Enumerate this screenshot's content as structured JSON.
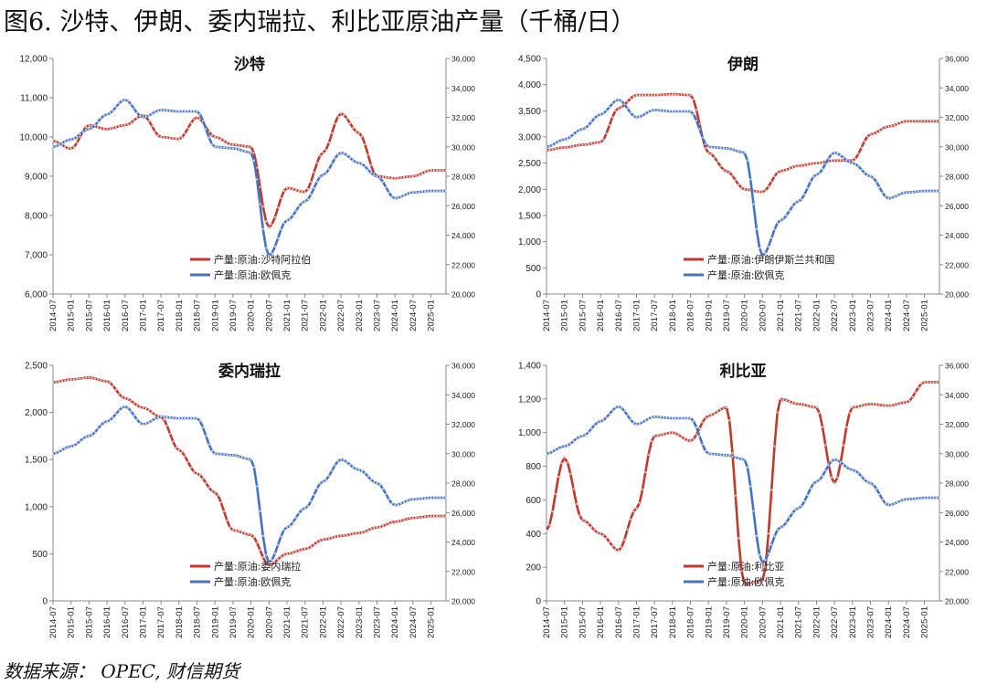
{
  "figure_title": "图6. 沙特、伊朗、委内瑞拉、利比亚原油产量（千桶/日）",
  "source_text": "数据来源：  OPEC,  财信期货",
  "colors": {
    "red": "#c0392b",
    "blue": "#4472c4"
  },
  "chart_data": [
    {
      "type": "line",
      "title": "沙特",
      "left_ylim": [
        6000,
        12000
      ],
      "left_ticks": [
        6000,
        7000,
        8000,
        9000,
        10000,
        11000,
        12000
      ],
      "left_tick_labels": [
        "6,000",
        "7,000",
        "8,000",
        "9,000",
        "10,000",
        "11,000",
        "12,000"
      ],
      "right_ylim": [
        20000,
        36000
      ],
      "right_ticks": [
        20000,
        22000,
        24000,
        26000,
        28000,
        30000,
        32000,
        34000,
        36000
      ],
      "right_tick_labels": [
        "20,000",
        "22,000",
        "24,000",
        "26,000",
        "28,000",
        "30,000",
        "32,000",
        "34,000",
        "36,000"
      ],
      "x": [
        "2014-07",
        "2015-01",
        "2015-07",
        "2016-01",
        "2016-07",
        "2017-01",
        "2017-07",
        "2018-01",
        "2018-07",
        "2019-01",
        "2019-07",
        "2020-01",
        "2020-07",
        "2021-01",
        "2021-07",
        "2022-01",
        "2022-07",
        "2023-01",
        "2023-07",
        "2024-01",
        "2024-07",
        "2025-01"
      ],
      "legend_position": "bottom-center",
      "series": [
        {
          "name": "产量:原油:沙特阿拉伯",
          "axis": "left",
          "color": "#c0392b",
          "values": [
            9900,
            9700,
            10300,
            10200,
            10300,
            10550,
            10000,
            9950,
            10500,
            10000,
            9800,
            9750,
            7700,
            8700,
            8600,
            9600,
            10600,
            10100,
            9000,
            8950,
            9000,
            9150
          ]
        },
        {
          "name": "产量:原油:欧佩克",
          "axis": "right",
          "color": "#4472c4",
          "values": [
            30000,
            30500,
            31200,
            32200,
            33200,
            32000,
            32500,
            32400,
            32400,
            30000,
            29900,
            29600,
            22600,
            25000,
            26300,
            28100,
            29600,
            28900,
            28000,
            26500,
            26900,
            27000
          ]
        }
      ]
    },
    {
      "type": "line",
      "title": "伊朗",
      "left_ylim": [
        0,
        4500
      ],
      "left_ticks": [
        0,
        500,
        1000,
        1500,
        2000,
        2500,
        3000,
        3500,
        4000,
        4500
      ],
      "left_tick_labels": [
        "0",
        "500",
        "1,000",
        "1,500",
        "2,000",
        "2,500",
        "3,000",
        "3,500",
        "4,000",
        "4,500"
      ],
      "right_ylim": [
        20000,
        36000
      ],
      "right_ticks": [
        20000,
        22000,
        24000,
        26000,
        28000,
        30000,
        32000,
        34000,
        36000
      ],
      "right_tick_labels": [
        "20,000",
        "22,000",
        "24,000",
        "26,000",
        "28,000",
        "30,000",
        "32,000",
        "34,000",
        "36,000"
      ],
      "x": [
        "2014-07",
        "2015-01",
        "2015-07",
        "2016-01",
        "2016-07",
        "2017-01",
        "2017-07",
        "2018-01",
        "2018-07",
        "2019-01",
        "2019-07",
        "2020-01",
        "2020-07",
        "2021-01",
        "2021-07",
        "2022-01",
        "2022-07",
        "2023-01",
        "2023-07",
        "2024-01",
        "2024-07",
        "2025-01"
      ],
      "legend_position": "bottom-center",
      "series": [
        {
          "name": "产量:原油:伊朗伊斯兰共和国",
          "axis": "left",
          "color": "#c0392b",
          "values": [
            2750,
            2800,
            2850,
            2900,
            3550,
            3800,
            3800,
            3820,
            3800,
            2700,
            2350,
            2000,
            1950,
            2350,
            2450,
            2500,
            2550,
            2550,
            3050,
            3200,
            3300,
            3300
          ]
        },
        {
          "name": "产量:原油:欧佩克",
          "axis": "right",
          "color": "#4472c4",
          "values": [
            30000,
            30500,
            31200,
            32200,
            33200,
            32000,
            32500,
            32400,
            32400,
            30000,
            29900,
            29600,
            22600,
            25000,
            26300,
            28100,
            29600,
            28900,
            28000,
            26500,
            26900,
            27000
          ]
        }
      ]
    },
    {
      "type": "line",
      "title": "委内瑞拉",
      "left_ylim": [
        0,
        2500
      ],
      "left_ticks": [
        0,
        500,
        1000,
        1500,
        2000,
        2500
      ],
      "left_tick_labels": [
        "0",
        "500",
        "1,000",
        "1,500",
        "2,000",
        "2,500"
      ],
      "right_ylim": [
        20000,
        36000
      ],
      "right_ticks": [
        20000,
        22000,
        24000,
        26000,
        28000,
        30000,
        32000,
        34000,
        36000
      ],
      "right_tick_labels": [
        "20,000",
        "22,000",
        "24,000",
        "26,000",
        "28,000",
        "30,000",
        "32,000",
        "34,000",
        "36,000"
      ],
      "x": [
        "2014-07",
        "2015-01",
        "2015-07",
        "2016-01",
        "2016-07",
        "2017-01",
        "2017-07",
        "2018-01",
        "2018-07",
        "2019-01",
        "2019-07",
        "2020-01",
        "2020-07",
        "2021-01",
        "2021-07",
        "2022-01",
        "2022-07",
        "2023-01",
        "2023-07",
        "2024-01",
        "2024-07",
        "2025-01"
      ],
      "legend_position": "bottom-center",
      "series": [
        {
          "name": "产量:原油:委内瑞拉",
          "axis": "left",
          "color": "#c0392b",
          "values": [
            2320,
            2350,
            2370,
            2330,
            2150,
            2050,
            1950,
            1600,
            1350,
            1150,
            750,
            700,
            380,
            500,
            550,
            650,
            690,
            720,
            780,
            840,
            880,
            900
          ]
        },
        {
          "name": "产量:原油:欧佩克",
          "axis": "right",
          "color": "#4472c4",
          "values": [
            30000,
            30500,
            31200,
            32200,
            33200,
            32000,
            32500,
            32400,
            32400,
            30000,
            29900,
            29600,
            22600,
            25000,
            26300,
            28100,
            29600,
            28900,
            28000,
            26500,
            26900,
            27000
          ]
        }
      ]
    },
    {
      "type": "line",
      "title": "利比亚",
      "left_ylim": [
        0,
        1400
      ],
      "left_ticks": [
        0,
        200,
        400,
        600,
        800,
        1000,
        1200,
        1400
      ],
      "left_tick_labels": [
        "0",
        "200",
        "400",
        "600",
        "800",
        "1,000",
        "1,200",
        "1,400"
      ],
      "right_ylim": [
        20000,
        36000
      ],
      "right_ticks": [
        20000,
        22000,
        24000,
        26000,
        28000,
        30000,
        32000,
        34000,
        36000
      ],
      "right_tick_labels": [
        "20,000",
        "22,000",
        "24,000",
        "26,000",
        "28,000",
        "30,000",
        "32,000",
        "34,000",
        "36,000"
      ],
      "x": [
        "2014-07",
        "2015-01",
        "2015-07",
        "2016-01",
        "2016-07",
        "2017-01",
        "2017-07",
        "2018-01",
        "2018-07",
        "2019-01",
        "2019-07",
        "2020-01",
        "2020-07",
        "2021-01",
        "2021-07",
        "2022-01",
        "2022-07",
        "2023-01",
        "2023-07",
        "2024-01",
        "2024-07",
        "2025-01"
      ],
      "legend_position": "bottom-center",
      "series": [
        {
          "name": "产量:原油:利比亚",
          "axis": "left",
          "color": "#c0392b",
          "values": [
            420,
            850,
            480,
            400,
            300,
            550,
            980,
            1000,
            950,
            1100,
            1150,
            100,
            120,
            1200,
            1170,
            1150,
            700,
            1150,
            1170,
            1160,
            1180,
            1300
          ]
        },
        {
          "name": "产量:原油:欧佩克",
          "axis": "right",
          "color": "#4472c4",
          "values": [
            30000,
            30500,
            31200,
            32200,
            33200,
            32000,
            32500,
            32400,
            32400,
            30000,
            29900,
            29600,
            22600,
            25000,
            26300,
            28100,
            29600,
            28900,
            28000,
            26500,
            26900,
            27000
          ]
        }
      ]
    }
  ]
}
